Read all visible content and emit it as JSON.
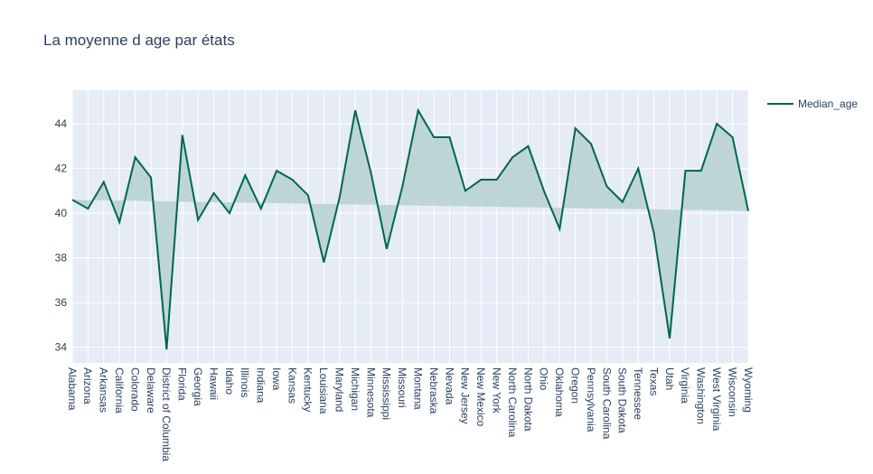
{
  "chart_data": {
    "type": "line",
    "title": "La moyenne d age par états",
    "xlabel": "",
    "ylabel": "",
    "categories": [
      "Alabama",
      "Arizona",
      "Arkansas",
      "California",
      "Colorado",
      "Delaware",
      "District of Columbia",
      "Florida",
      "Georgia",
      "Hawaii",
      "Idaho",
      "Illinois",
      "Indiana",
      "Iowa",
      "Kansas",
      "Kentucky",
      "Louisiana",
      "Maryland",
      "Michigan",
      "Minnesota",
      "Mississippi",
      "Missouri",
      "Montana",
      "Nebraska",
      "Nevada",
      "New Jersey",
      "New Mexico",
      "New York",
      "North Carolina",
      "North Dakota",
      "Ohio",
      "Oklahoma",
      "Oregon",
      "Pennsylvania",
      "South Carolina",
      "South Dakota",
      "Tennessee",
      "Texas",
      "Utah",
      "Virginia",
      "Washington",
      "West Virginia",
      "Wisconsin",
      "Wyoming"
    ],
    "series": [
      {
        "name": "Median_age",
        "color": "#00664f",
        "values": [
          40.6,
          40.2,
          41.4,
          39.6,
          42.5,
          41.6,
          33.9,
          43.5,
          39.7,
          40.9,
          40.0,
          41.7,
          40.2,
          41.9,
          41.5,
          40.8,
          37.8,
          40.7,
          44.6,
          41.8,
          38.4,
          41.2,
          44.6,
          43.4,
          43.4,
          41.0,
          41.5,
          41.5,
          42.5,
          43.0,
          41.0,
          39.3,
          43.8,
          43.1,
          41.2,
          40.5,
          42.0,
          39.1,
          34.4,
          41.9,
          41.9,
          44.0,
          43.4,
          40.1
        ]
      }
    ],
    "trend": {
      "start": 40.6,
      "end": 40.1,
      "fill_color": "#b9d3d2"
    },
    "ylim": [
      33.3,
      45.5
    ],
    "yticks": [
      34,
      36,
      38,
      40,
      42,
      44
    ],
    "grid": true,
    "legend": {
      "position": "top-right",
      "entries": [
        "Median_age"
      ]
    }
  }
}
